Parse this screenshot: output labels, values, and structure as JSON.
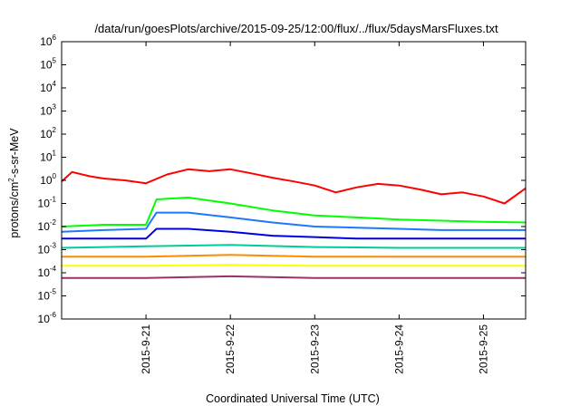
{
  "chart_data": {
    "type": "line",
    "title": "/data/run/goesPlots/archive/2015-09-25/12:00/flux/../flux/5daysMarsFluxes.txt",
    "xlabel": "Coordinated Universal Time (UTC)",
    "ylabel": "protons/cm2-s-sr-MeV",
    "ylabel_base": "protons/cm",
    "ylabel_sup": "2",
    "ylabel_rest": "-s-sr-MeV",
    "xlim": [
      "2015-09-20T00:00",
      "2015-09-25T12:00"
    ],
    "ylim": [
      1e-06,
      1000000.0
    ],
    "yscale": "log",
    "grid": false,
    "legend": "none",
    "xticks": [
      "2015-9-21",
      "2015-9-22",
      "2015-9-23",
      "2015-9-24",
      "2015-9-25"
    ],
    "yticks": [
      {
        "base": "10",
        "exp": "-6"
      },
      {
        "base": "10",
        "exp": "-5"
      },
      {
        "base": "10",
        "exp": "-4"
      },
      {
        "base": "10",
        "exp": "-3"
      },
      {
        "base": "10",
        "exp": "-2"
      },
      {
        "base": "10",
        "exp": "-1"
      },
      {
        "base": "10",
        "exp": "0"
      },
      {
        "base": "10",
        "exp": "1"
      },
      {
        "base": "10",
        "exp": "2"
      },
      {
        "base": "10",
        "exp": "3"
      },
      {
        "base": "10",
        "exp": "4"
      },
      {
        "base": "10",
        "exp": "5"
      },
      {
        "base": "10",
        "exp": "6"
      }
    ],
    "series": [
      {
        "color": "#ff0000",
        "x": [
          "2015-09-20T00:00",
          "2015-09-20T03:00",
          "2015-09-20T08:00",
          "2015-09-20T12:00",
          "2015-09-20T18:00",
          "2015-09-21T00:00",
          "2015-09-21T06:00",
          "2015-09-21T12:00",
          "2015-09-21T18:00",
          "2015-09-22T00:00",
          "2015-09-22T06:00",
          "2015-09-22T12:00",
          "2015-09-22T18:00",
          "2015-09-23T00:00",
          "2015-09-23T06:00",
          "2015-09-23T12:00",
          "2015-09-23T18:00",
          "2015-09-24T00:00",
          "2015-09-24T06:00",
          "2015-09-24T12:00",
          "2015-09-24T18:00",
          "2015-09-25T00:00",
          "2015-09-25T06:00",
          "2015-09-25T12:00"
        ],
        "values": [
          0.9,
          2.3,
          1.5,
          1.2,
          1.0,
          0.75,
          1.8,
          3.0,
          2.5,
          3.0,
          2.0,
          1.3,
          0.9,
          0.6,
          0.3,
          0.5,
          0.7,
          0.6,
          0.4,
          0.25,
          0.3,
          0.2,
          0.1,
          0.45
        ]
      },
      {
        "color": "#00ff00",
        "x": [
          "2015-09-20T00:00",
          "2015-09-20T12:00",
          "2015-09-21T00:00",
          "2015-09-21T03:00",
          "2015-09-21T12:00",
          "2015-09-22T00:00",
          "2015-09-22T12:00",
          "2015-09-23T00:00",
          "2015-09-23T12:00",
          "2015-09-24T00:00",
          "2015-09-24T12:00",
          "2015-09-25T00:00",
          "2015-09-25T12:00"
        ],
        "values": [
          0.01,
          0.012,
          0.012,
          0.15,
          0.18,
          0.1,
          0.05,
          0.03,
          0.025,
          0.02,
          0.018,
          0.016,
          0.015
        ]
      },
      {
        "color": "#1e78ff",
        "x": [
          "2015-09-20T00:00",
          "2015-09-20T12:00",
          "2015-09-21T00:00",
          "2015-09-21T03:00",
          "2015-09-21T12:00",
          "2015-09-22T00:00",
          "2015-09-22T12:00",
          "2015-09-23T00:00",
          "2015-09-23T12:00",
          "2015-09-24T00:00",
          "2015-09-24T12:00",
          "2015-09-25T00:00",
          "2015-09-25T12:00"
        ],
        "values": [
          0.006,
          0.007,
          0.008,
          0.04,
          0.04,
          0.025,
          0.015,
          0.01,
          0.009,
          0.008,
          0.007,
          0.007,
          0.007
        ]
      },
      {
        "color": "#0000dd",
        "x": [
          "2015-09-20T00:00",
          "2015-09-20T12:00",
          "2015-09-21T00:00",
          "2015-09-21T03:00",
          "2015-09-21T12:00",
          "2015-09-22T00:00",
          "2015-09-22T12:00",
          "2015-09-23T00:00",
          "2015-09-23T12:00",
          "2015-09-24T00:00",
          "2015-09-24T12:00",
          "2015-09-25T00:00",
          "2015-09-25T12:00"
        ],
        "values": [
          0.003,
          0.003,
          0.003,
          0.008,
          0.008,
          0.006,
          0.004,
          0.0035,
          0.003,
          0.003,
          0.003,
          0.003,
          0.003
        ]
      },
      {
        "color": "#00cc99",
        "x": [
          "2015-09-20T00:00",
          "2015-09-21T00:00",
          "2015-09-22T00:00",
          "2015-09-23T00:00",
          "2015-09-24T00:00",
          "2015-09-25T00:00",
          "2015-09-25T12:00"
        ],
        "values": [
          0.0012,
          0.0014,
          0.0016,
          0.0013,
          0.0012,
          0.0012,
          0.0012
        ]
      },
      {
        "color": "#ff8c00",
        "x": [
          "2015-09-20T00:00",
          "2015-09-21T00:00",
          "2015-09-22T00:00",
          "2015-09-23T00:00",
          "2015-09-24T00:00",
          "2015-09-25T00:00",
          "2015-09-25T12:00"
        ],
        "values": [
          0.0005,
          0.0005,
          0.0006,
          0.0005,
          0.0005,
          0.0005,
          0.0005
        ]
      },
      {
        "color": "#ffff00",
        "x": [
          "2015-09-20T00:00",
          "2015-09-21T00:00",
          "2015-09-22T00:00",
          "2015-09-23T00:00",
          "2015-09-24T00:00",
          "2015-09-25T00:00",
          "2015-09-25T12:00"
        ],
        "values": [
          0.0002,
          0.0002,
          0.00022,
          0.0002,
          0.0002,
          0.0002,
          0.0002
        ]
      },
      {
        "color": "#993366",
        "x": [
          "2015-09-20T00:00",
          "2015-09-21T00:00",
          "2015-09-22T00:00",
          "2015-09-23T00:00",
          "2015-09-24T00:00",
          "2015-09-25T00:00",
          "2015-09-25T12:00"
        ],
        "values": [
          6e-05,
          6e-05,
          7e-05,
          6e-05,
          6e-05,
          6e-05,
          6e-05
        ]
      }
    ]
  }
}
